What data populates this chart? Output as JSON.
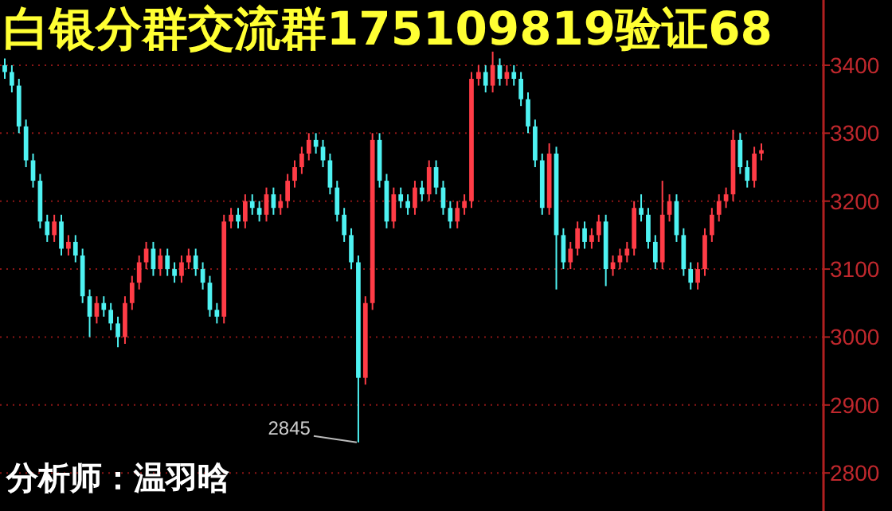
{
  "chart_data": {
    "type": "candlestick",
    "title": "白银分群交流群175109819验证68",
    "annotations": [
      "2845",
      "分析师：温羽晗"
    ],
    "ylim": [
      2744,
      3496
    ],
    "yticks": [
      2800,
      2900,
      3000,
      3100,
      3200,
      3300,
      3400
    ],
    "grid": "y",
    "categories": [
      null,
      null,
      null,
      null,
      null,
      null,
      null,
      null,
      null,
      null,
      null,
      null,
      null,
      null,
      null,
      null,
      null,
      null,
      null,
      null,
      null,
      null,
      null,
      null,
      null,
      null,
      null,
      null,
      null,
      null,
      null,
      null,
      null,
      null,
      null,
      null,
      null,
      null,
      null,
      null,
      null,
      null,
      null,
      null,
      null,
      null,
      null,
      null,
      null,
      null,
      null,
      null,
      null,
      null,
      null,
      null,
      null,
      null,
      null,
      null,
      null,
      null,
      null,
      null,
      null,
      null,
      null,
      null,
      null,
      null,
      null,
      null,
      null,
      null,
      null,
      null,
      null,
      null,
      null,
      null,
      null,
      null,
      null,
      null,
      null,
      null,
      null,
      null,
      null,
      null,
      null,
      null,
      null,
      null,
      null,
      null,
      null,
      null,
      null,
      null,
      null,
      null,
      null,
      null,
      null,
      null,
      null,
      null
    ],
    "ohlc": [
      [
        3400,
        3410,
        3380,
        3390
      ],
      [
        3390,
        3400,
        3360,
        3370
      ],
      [
        3370,
        3380,
        3300,
        3310
      ],
      [
        3310,
        3320,
        3250,
        3260
      ],
      [
        3260,
        3270,
        3220,
        3230
      ],
      [
        3230,
        3240,
        3160,
        3170
      ],
      [
        3170,
        3180,
        3140,
        3150
      ],
      [
        3150,
        3180,
        3140,
        3170
      ],
      [
        3170,
        3180,
        3120,
        3130
      ],
      [
        3130,
        3150,
        3120,
        3140
      ],
      [
        3140,
        3150,
        3110,
        3120
      ],
      [
        3120,
        3130,
        3050,
        3060
      ],
      [
        3060,
        3070,
        3000,
        3030
      ],
      [
        3030,
        3060,
        3020,
        3050
      ],
      [
        3050,
        3060,
        3030,
        3040
      ],
      [
        3040,
        3050,
        3010,
        3020
      ],
      [
        3020,
        3030,
        2985,
        3000
      ],
      [
        3000,
        3060,
        2990,
        3050
      ],
      [
        3050,
        3090,
        3040,
        3080
      ],
      [
        3080,
        3120,
        3070,
        3110
      ],
      [
        3110,
        3140,
        3100,
        3130
      ],
      [
        3130,
        3140,
        3090,
        3100
      ],
      [
        3100,
        3130,
        3090,
        3120
      ],
      [
        3120,
        3130,
        3090,
        3100
      ],
      [
        3100,
        3110,
        3080,
        3090
      ],
      [
        3090,
        3120,
        3080,
        3110
      ],
      [
        3110,
        3130,
        3100,
        3120
      ],
      [
        3120,
        3130,
        3090,
        3100
      ],
      [
        3100,
        3110,
        3070,
        3080
      ],
      [
        3080,
        3090,
        3030,
        3040
      ],
      [
        3040,
        3050,
        3020,
        3030
      ],
      [
        3030,
        3180,
        3020,
        3170
      ],
      [
        3170,
        3190,
        3160,
        3180
      ],
      [
        3180,
        3190,
        3160,
        3170
      ],
      [
        3170,
        3210,
        3160,
        3200
      ],
      [
        3200,
        3210,
        3180,
        3190
      ],
      [
        3190,
        3200,
        3170,
        3180
      ],
      [
        3180,
        3220,
        3170,
        3210
      ],
      [
        3210,
        3220,
        3180,
        3190
      ],
      [
        3190,
        3210,
        3180,
        3200
      ],
      [
        3200,
        3240,
        3190,
        3230
      ],
      [
        3230,
        3260,
        3220,
        3250
      ],
      [
        3250,
        3280,
        3240,
        3270
      ],
      [
        3270,
        3300,
        3260,
        3290
      ],
      [
        3290,
        3300,
        3270,
        3280
      ],
      [
        3280,
        3290,
        3250,
        3260
      ],
      [
        3260,
        3270,
        3210,
        3220
      ],
      [
        3220,
        3230,
        3170,
        3180
      ],
      [
        3180,
        3190,
        3140,
        3150
      ],
      [
        3150,
        3160,
        3100,
        3110
      ],
      [
        3110,
        3120,
        2845,
        2940
      ],
      [
        2940,
        3060,
        2930,
        3050
      ],
      [
        3050,
        3300,
        3040,
        3290
      ],
      [
        3290,
        3300,
        3220,
        3230
      ],
      [
        3230,
        3240,
        3160,
        3170
      ],
      [
        3170,
        3220,
        3160,
        3210
      ],
      [
        3210,
        3220,
        3190,
        3200
      ],
      [
        3200,
        3210,
        3180,
        3190
      ],
      [
        3190,
        3230,
        3180,
        3220
      ],
      [
        3220,
        3230,
        3200,
        3210
      ],
      [
        3210,
        3260,
        3200,
        3250
      ],
      [
        3250,
        3260,
        3210,
        3220
      ],
      [
        3220,
        3230,
        3180,
        3190
      ],
      [
        3190,
        3200,
        3160,
        3170
      ],
      [
        3170,
        3200,
        3160,
        3190
      ],
      [
        3190,
        3210,
        3180,
        3200
      ],
      [
        3200,
        3390,
        3190,
        3380
      ],
      [
        3380,
        3400,
        3370,
        3390
      ],
      [
        3390,
        3400,
        3360,
        3370
      ],
      [
        3370,
        3420,
        3360,
        3400
      ],
      [
        3400,
        3410,
        3370,
        3380
      ],
      [
        3380,
        3400,
        3370,
        3390
      ],
      [
        3390,
        3400,
        3370,
        3380
      ],
      [
        3380,
        3390,
        3340,
        3350
      ],
      [
        3350,
        3360,
        3300,
        3310
      ],
      [
        3310,
        3320,
        3250,
        3260
      ],
      [
        3260,
        3270,
        3180,
        3190
      ],
      [
        3190,
        3285,
        3180,
        3270
      ],
      [
        3270,
        3280,
        3070,
        3150
      ],
      [
        3150,
        3160,
        3100,
        3110
      ],
      [
        3110,
        3140,
        3100,
        3130
      ],
      [
        3130,
        3170,
        3120,
        3160
      ],
      [
        3160,
        3170,
        3130,
        3140
      ],
      [
        3140,
        3160,
        3130,
        3150
      ],
      [
        3150,
        3180,
        3140,
        3170
      ],
      [
        3170,
        3180,
        3075,
        3100
      ],
      [
        3100,
        3120,
        3090,
        3110
      ],
      [
        3110,
        3130,
        3100,
        3120
      ],
      [
        3120,
        3140,
        3110,
        3130
      ],
      [
        3130,
        3200,
        3120,
        3190
      ],
      [
        3190,
        3210,
        3170,
        3180
      ],
      [
        3180,
        3190,
        3130,
        3140
      ],
      [
        3140,
        3150,
        3100,
        3110
      ],
      [
        3110,
        3230,
        3100,
        3180
      ],
      [
        3180,
        3210,
        3170,
        3200
      ],
      [
        3200,
        3210,
        3140,
        3150
      ],
      [
        3150,
        3160,
        3090,
        3100
      ],
      [
        3100,
        3110,
        3070,
        3080
      ],
      [
        3080,
        3110,
        3070,
        3100
      ],
      [
        3100,
        3160,
        3090,
        3150
      ],
      [
        3150,
        3190,
        3140,
        3180
      ],
      [
        3180,
        3210,
        3170,
        3200
      ],
      [
        3200,
        3220,
        3190,
        3210
      ],
      [
        3210,
        3305,
        3200,
        3290
      ],
      [
        3290,
        3300,
        3240,
        3250
      ],
      [
        3250,
        3260,
        3220,
        3230
      ],
      [
        3230,
        3280,
        3220,
        3270
      ],
      [
        3270,
        3285,
        3260,
        3275
      ]
    ]
  }
}
